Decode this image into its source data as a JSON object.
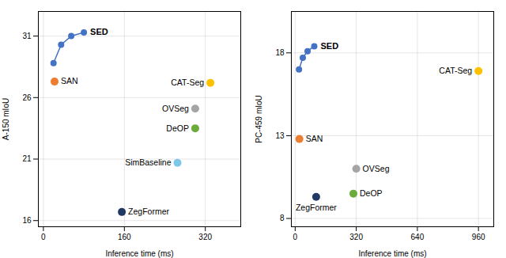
{
  "chart_data": [
    {
      "type": "scatter",
      "xlabel": "Inference time (ms)",
      "ylabel": "A-150 mIoU",
      "xlim": [
        -10,
        390
      ],
      "ylim": [
        15.5,
        33
      ],
      "xticks": [
        0,
        160,
        320
      ],
      "yticks": [
        16,
        21,
        26,
        31
      ],
      "grid": true,
      "series": [
        {
          "name": "SED",
          "type": "line",
          "marker": "circle",
          "color": "#4472C4",
          "x": [
            20,
            35,
            55,
            80
          ],
          "values": [
            28.8,
            30.3,
            31.0,
            31.3
          ]
        },
        {
          "name": "SAN",
          "type": "scatter",
          "marker": "circle",
          "color": "#ED7D31",
          "x": [
            22
          ],
          "values": [
            27.3
          ]
        },
        {
          "name": "CAT-Seg",
          "type": "scatter",
          "marker": "circle",
          "color": "#FFC000",
          "x": [
            330
          ],
          "values": [
            27.2
          ]
        },
        {
          "name": "OVSeg",
          "type": "scatter",
          "marker": "circle",
          "color": "#A5A5A5",
          "x": [
            300
          ],
          "values": [
            25.1
          ]
        },
        {
          "name": "DeOP",
          "type": "scatter",
          "marker": "circle",
          "color": "#6AAB3C",
          "x": [
            300
          ],
          "values": [
            23.5
          ]
        },
        {
          "name": "SimBaseline",
          "type": "scatter",
          "marker": "circle",
          "color": "#7DC6E8",
          "x": [
            265
          ],
          "values": [
            20.7
          ]
        },
        {
          "name": "ZegFormer",
          "type": "scatter",
          "marker": "circle",
          "color": "#1F3864",
          "x": [
            155
          ],
          "values": [
            16.7
          ]
        }
      ]
    },
    {
      "type": "scatter",
      "xlabel": "Inference time (ms)",
      "ylabel": "PC-459 mIoU",
      "xlim": [
        -20,
        1040
      ],
      "ylim": [
        7.5,
        20.5
      ],
      "xticks": [
        0,
        320,
        640,
        960
      ],
      "yticks": [
        8,
        13,
        18
      ],
      "grid": true,
      "series": [
        {
          "name": "SED",
          "type": "line",
          "marker": "circle",
          "color": "#4472C4",
          "x": [
            20,
            40,
            65,
            100
          ],
          "values": [
            17.0,
            17.7,
            18.1,
            18.4
          ]
        },
        {
          "name": "SAN",
          "type": "scatter",
          "marker": "circle",
          "color": "#ED7D31",
          "x": [
            22
          ],
          "values": [
            12.8
          ]
        },
        {
          "name": "CAT-Seg",
          "type": "scatter",
          "marker": "circle",
          "color": "#FFC000",
          "x": [
            960
          ],
          "values": [
            16.9
          ]
        },
        {
          "name": "OVSeg",
          "type": "scatter",
          "marker": "circle",
          "color": "#A5A5A5",
          "x": [
            320
          ],
          "values": [
            11.0
          ]
        },
        {
          "name": "DeOP",
          "type": "scatter",
          "marker": "circle",
          "color": "#6AAB3C",
          "x": [
            305
          ],
          "values": [
            9.5
          ]
        },
        {
          "name": "ZegFormer",
          "type": "scatter",
          "marker": "circle",
          "color": "#1F3864",
          "x": [
            110
          ],
          "values": [
            9.3
          ]
        }
      ]
    }
  ]
}
